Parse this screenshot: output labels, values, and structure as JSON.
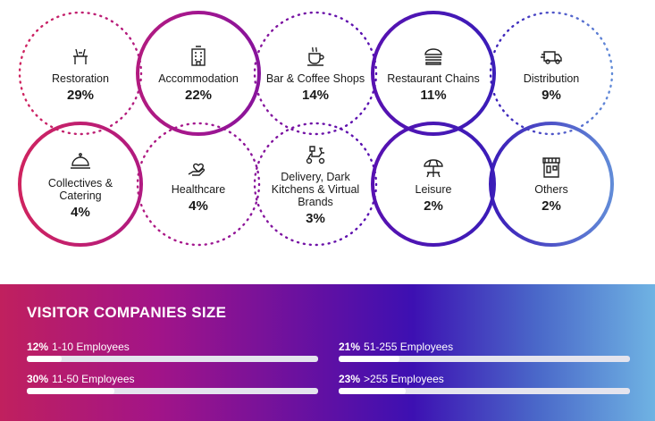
{
  "sectors": [
    {
      "label": "Restoration",
      "value": "29%",
      "icon": "dining-table-icon"
    },
    {
      "label": "Accommodation",
      "value": "22%",
      "icon": "hotel-icon"
    },
    {
      "label": "Bar & Coffee Shops",
      "value": "14%",
      "icon": "coffee-cup-icon"
    },
    {
      "label": "Restaurant Chains",
      "value": "11%",
      "icon": "burger-icon"
    },
    {
      "label": "Distribution",
      "value": "9%",
      "icon": "delivery-truck-icon"
    },
    {
      "label": "Collectives & Catering",
      "value": "4%",
      "icon": "cloche-icon"
    },
    {
      "label": "Healthcare",
      "value": "4%",
      "icon": "heart-hand-icon"
    },
    {
      "label": "Delivery, Dark Kitchens & Virtual Brands",
      "value": "3%",
      "icon": "delivery-scooter-icon"
    },
    {
      "label": "Leisure",
      "value": "2%",
      "icon": "beach-umbrella-icon"
    },
    {
      "label": "Others",
      "value": "2%",
      "icon": "storefront-icon"
    }
  ],
  "company_size": {
    "title": "VISITOR COMPANIES SIZE",
    "bars": [
      {
        "pct": "12%",
        "label": "1-10 Employees",
        "fraction": 0.12
      },
      {
        "pct": "21%",
        "label": "51-255 Employees",
        "fraction": 0.21
      },
      {
        "pct": "30%",
        "label": "11-50 Employees",
        "fraction": 0.3
      },
      {
        "pct": "23%",
        "label": ">255 Employees",
        "fraction": 0.23
      }
    ]
  },
  "colors": {
    "magenta": "#c41f6a",
    "purple": "#8a1aa6",
    "violet": "#4a12b0",
    "blue": "#4d6fd0",
    "light_blue": "#6fb3e3"
  }
}
